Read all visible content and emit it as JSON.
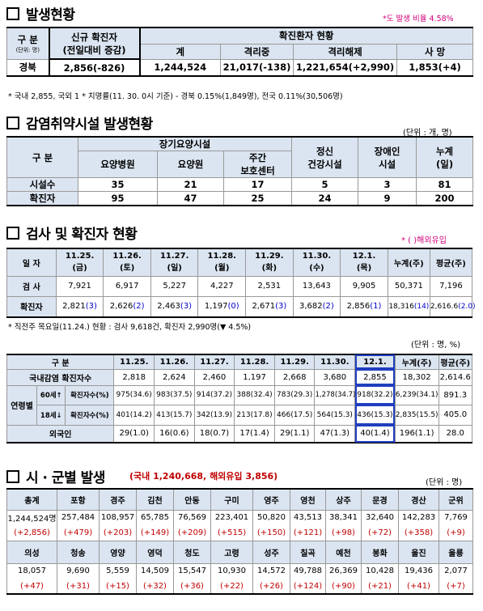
{
  "s1": {
    "title": "발생현황",
    "note_right": "*도 발생 비율 4.58%",
    "h_gubun": "구  분",
    "h_unit": "(단위: 명)",
    "h_new1": "신규 확진자",
    "h_new2": "(전일대비 증감)",
    "h_group": "확진환자 현황",
    "h_total": "계",
    "h_isol": "격리중",
    "h_release": "격리해제",
    "h_death": "사  망",
    "row_label": "경북",
    "new_val": "2,856(-826)",
    "total": "1,244,524",
    "isol": "21,017(-138)",
    "release": "1,221,654(+2,990)",
    "death": "1,853(+4)",
    "footnote": "* 국내 2,855, 국외 1  * 치명률(11. 30. 0시 기준) - 경북 0.15%(1,849명), 전국 0.11%(30,506명)"
  },
  "s2": {
    "title": "감염취약시설 발생현황",
    "unit": "(단위 : 개, 명)",
    "h_gubun": "구  분",
    "h_longterm": "장기요양시설",
    "h_hosp": "요양병원",
    "h_home": "요양원",
    "h_day1": "주간",
    "h_day2": "보호센터",
    "h_mental1": "정신",
    "h_mental2": "건강시설",
    "h_dis1": "장애인",
    "h_dis2": "시설",
    "h_cum1": "누계",
    "h_cum2": "(일)",
    "rows": [
      {
        "label": "시설수",
        "v": [
          "35",
          "21",
          "17",
          "5",
          "3",
          "81"
        ]
      },
      {
        "label": "확진자",
        "v": [
          "95",
          "47",
          "25",
          "24",
          "9",
          "200"
        ]
      }
    ]
  },
  "s3": {
    "title": "검사 및 확진자 현황",
    "note_right": "* ( )해외유입",
    "h_day": "일  자",
    "dates": [
      [
        "11.25.",
        "(금)"
      ],
      [
        "11.26.",
        "(토)"
      ],
      [
        "11.27.",
        "(일)"
      ],
      [
        "11.28.",
        "(월)"
      ],
      [
        "11.29.",
        "(화)"
      ],
      [
        "11.30.",
        "(수)"
      ],
      [
        "12.1.",
        "(목)"
      ]
    ],
    "h_cum": "누계(주)",
    "h_avg": "평균(주)",
    "test_label": "검  사",
    "tests": [
      "7,921",
      "6,917",
      "5,227",
      "4,227",
      "2,531",
      "13,643",
      "9,905",
      "50,371",
      "7,196"
    ],
    "conf_label": "확진자",
    "conf": [
      [
        "2,821",
        "(3)"
      ],
      [
        "2,626",
        "(2)"
      ],
      [
        "2,463",
        "(3)"
      ],
      [
        "1,197",
        "(0)"
      ],
      [
        "2,671",
        "(3)"
      ],
      [
        "3,682",
        "(2)"
      ],
      [
        "2,856",
        "(1)"
      ],
      [
        "18,316",
        "(14)"
      ],
      [
        "2,616.6",
        "(2.0)"
      ]
    ],
    "footnote": "* 직전주 목요일(11.24.) 현황 : 검사 9,618건, 확진자 2,990명(▼ 4.5%)"
  },
  "s4": {
    "unit": "(단위 : 명, %)",
    "h_gubun": "구  분",
    "dates": [
      "11.25.",
      "11.26.",
      "11.27.",
      "11.28.",
      "11.29.",
      "11.30.",
      "12.1."
    ],
    "h_cum": "누계(주)",
    "h_avg": "평균(주)",
    "domestic_label": "국내감염 확진자수",
    "domestic": [
      "2,818",
      "2,624",
      "2,460",
      "1,197",
      "2,668",
      "3,680",
      "2,855",
      "18,302",
      "2,614.6"
    ],
    "age_label": "연령별",
    "over60_label": "60세↑",
    "under18_label": "18세↓",
    "conf_label_pct": "확진자수(%)",
    "over60": [
      "975(34.6)",
      "983(37.5)",
      "914(37.2)",
      "388(32.4)",
      "783(29.3)",
      "1,278(34.7)",
      "918(32.2)",
      "6,239(34.1)",
      "891.3"
    ],
    "under18": [
      "401(14.2)",
      "413(15.7)",
      "342(13.9)",
      "213(17.8)",
      "466(17.5)",
      "564(15.3)",
      "436(15.3)",
      "2,835(15.5)",
      "405.0"
    ],
    "foreign_label": "외국인",
    "foreign": [
      "29(1.0)",
      "16(0.6)",
      "18(0.7)",
      "17(1.4)",
      "29(1.1)",
      "47(1.3)",
      "40(1.4)",
      "196(1.1)",
      "28.0"
    ]
  },
  "s5": {
    "title": "시 · 군별 발생",
    "sub_domestic": "(국내 1,240,668,",
    "sub_overseas": "해외유입 3,856)",
    "unit": "(단위 : 명)",
    "row1_heads": [
      "총계",
      "포항",
      "경주",
      "김천",
      "안동",
      "구미",
      "영주",
      "영천",
      "상주",
      "문경",
      "경산",
      "군위"
    ],
    "row1_vals": [
      "1,244,524명",
      "257,484",
      "108,957",
      "65,785",
      "76,569",
      "223,401",
      "50,820",
      "43,513",
      "38,341",
      "32,640",
      "142,283",
      "7,769"
    ],
    "row1_diff": [
      "(+2,856)",
      "(+479)",
      "(+203)",
      "(+149)",
      "(+209)",
      "(+515)",
      "(+150)",
      "(+121)",
      "(+98)",
      "(+72)",
      "(+358)",
      "(+9)"
    ],
    "row2_heads": [
      "의성",
      "청송",
      "영양",
      "영덕",
      "청도",
      "고령",
      "성주",
      "칠곡",
      "예천",
      "봉화",
      "울진",
      "울릉"
    ],
    "row2_vals": [
      "18,057",
      "9,690",
      "5,559",
      "14,509",
      "15,547",
      "10,930",
      "14,572",
      "49,788",
      "26,369",
      "10,428",
      "19,436",
      "2,077"
    ],
    "row2_diff": [
      "(+47)",
      "(+31)",
      "(+15)",
      "(+32)",
      "(+36)",
      "(+22)",
      "(+26)",
      "(+124)",
      "(+90)",
      "(+21)",
      "(+41)",
      "(+7)"
    ]
  }
}
